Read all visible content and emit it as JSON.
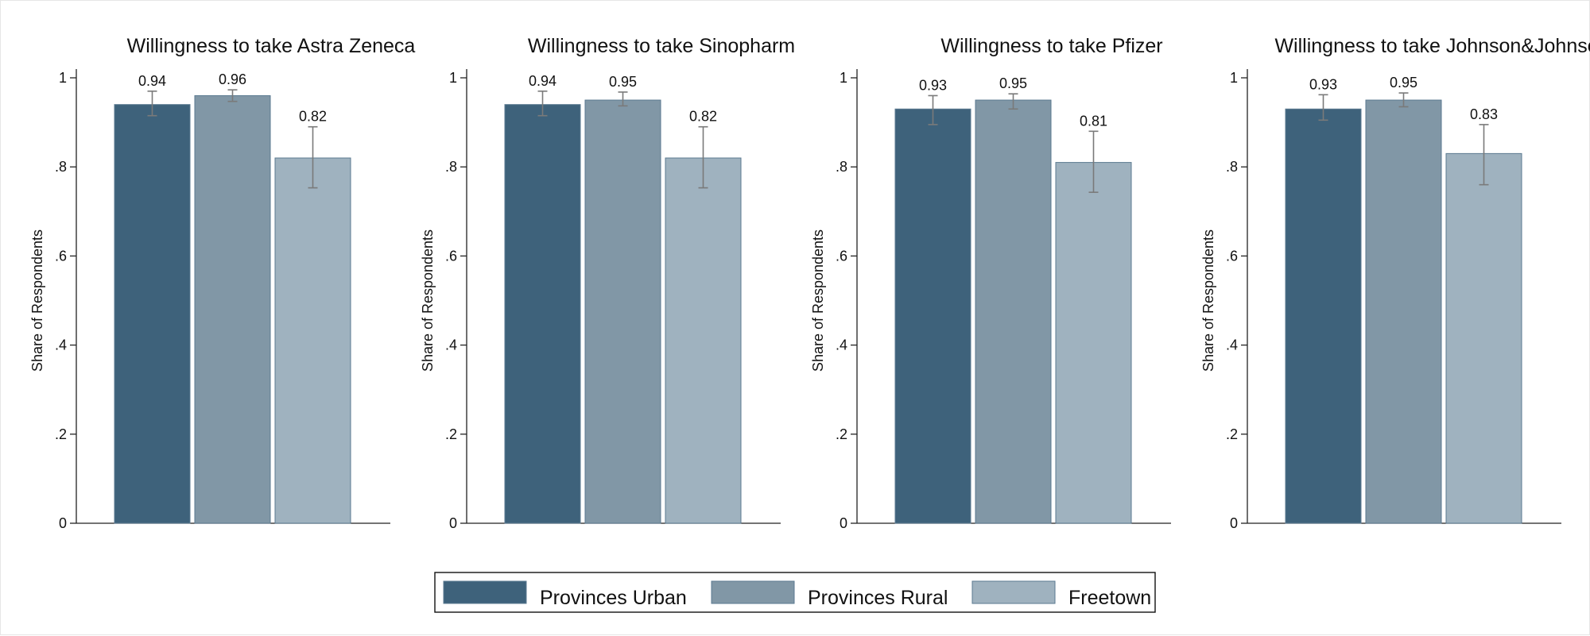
{
  "chart_data": [
    {
      "type": "bar",
      "title": "Willingness to take Astra Zeneca",
      "ylabel": "Share of Respondents",
      "ylim": [
        0,
        1
      ],
      "yticks": [
        "0",
        ".2",
        ".4",
        ".6",
        ".8",
        "1"
      ],
      "series": [
        {
          "name": "Provinces Urban",
          "value": 0.94,
          "label": "0.94",
          "ci": [
            0.915,
            0.97
          ]
        },
        {
          "name": "Provinces Rural",
          "value": 0.96,
          "label": "0.96",
          "ci": [
            0.947,
            0.973
          ]
        },
        {
          "name": "Freetown",
          "value": 0.82,
          "label": "0.82",
          "ci": [
            0.753,
            0.89
          ]
        }
      ]
    },
    {
      "type": "bar",
      "title": "Willingness to take Sinopharm",
      "ylabel": "Share of Respondents",
      "ylim": [
        0,
        1
      ],
      "yticks": [
        "0",
        ".2",
        ".4",
        ".6",
        ".8",
        "1"
      ],
      "series": [
        {
          "name": "Provinces Urban",
          "value": 0.94,
          "label": "0.94",
          "ci": [
            0.915,
            0.97
          ]
        },
        {
          "name": "Provinces Rural",
          "value": 0.95,
          "label": "0.95",
          "ci": [
            0.937,
            0.968
          ]
        },
        {
          "name": "Freetown",
          "value": 0.82,
          "label": "0.82",
          "ci": [
            0.753,
            0.89
          ]
        }
      ]
    },
    {
      "type": "bar",
      "title": "Willingness to take Pfizer",
      "ylabel": "Share of Respondents",
      "ylim": [
        0,
        1
      ],
      "yticks": [
        "0",
        ".2",
        ".4",
        ".6",
        ".8",
        "1"
      ],
      "series": [
        {
          "name": "Provinces Urban",
          "value": 0.93,
          "label": "0.93",
          "ci": [
            0.895,
            0.96
          ]
        },
        {
          "name": "Provinces Rural",
          "value": 0.95,
          "label": "0.95",
          "ci": [
            0.93,
            0.964
          ]
        },
        {
          "name": "Freetown",
          "value": 0.81,
          "label": "0.81",
          "ci": [
            0.743,
            0.88
          ]
        }
      ]
    },
    {
      "type": "bar",
      "title": "Willingness to take Johnson&Johnson",
      "ylabel": "Share of Respondents",
      "ylim": [
        0,
        1
      ],
      "yticks": [
        "0",
        ".2",
        ".4",
        ".6",
        ".8",
        "1"
      ],
      "series": [
        {
          "name": "Provinces Urban",
          "value": 0.93,
          "label": "0.93",
          "ci": [
            0.905,
            0.962
          ]
        },
        {
          "name": "Provinces Rural",
          "value": 0.95,
          "label": "0.95",
          "ci": [
            0.935,
            0.966
          ]
        },
        {
          "name": "Freetown",
          "value": 0.83,
          "label": "0.83",
          "ci": [
            0.76,
            0.895
          ]
        }
      ]
    }
  ],
  "legend": {
    "items": [
      {
        "label": "Provinces Urban",
        "color": "#3e627b"
      },
      {
        "label": "Provinces Rural",
        "color": "#8197a6"
      },
      {
        "label": "Freetown",
        "color": "#9fb2bf"
      }
    ]
  },
  "colors": {
    "error_bar": "#7a7a7a",
    "axis": "#222222"
  }
}
